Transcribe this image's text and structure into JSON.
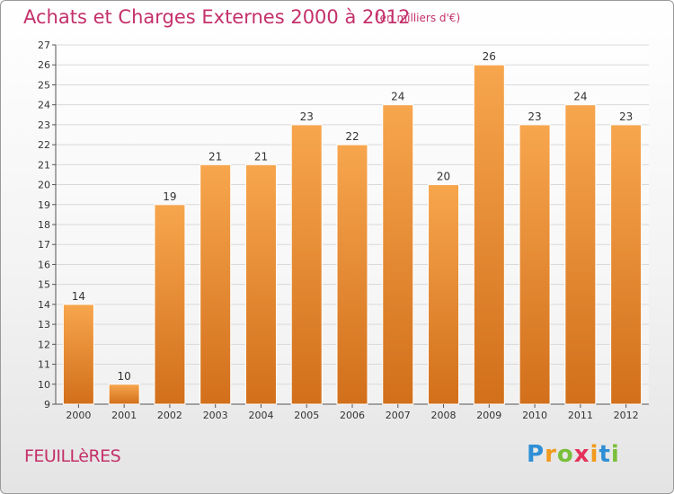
{
  "chart": {
    "title": "Achats et Charges Externes 2000 à 2012",
    "subtitle": "(en milliers d'€)"
  },
  "commune": "FEUILLèRES",
  "logo": {
    "letters": [
      "P",
      "r",
      "o",
      "x",
      "i",
      "t",
      "i"
    ],
    "colors": [
      "#2f8fd6",
      "#f29a1d",
      "#7abf3a",
      "#e5325a",
      "#f29a1d",
      "#2f8fd6",
      "#7abf3a"
    ]
  },
  "colors": {
    "accent": "#c4306a",
    "bar_light": "#f7a64e",
    "bar_dark": "#d26f1b"
  },
  "chart_data": {
    "type": "bar",
    "title": "Achats et Charges Externes 2000 à 2012",
    "subtitle": "(en milliers d'€)",
    "categories": [
      "2000",
      "2001",
      "2002",
      "2003",
      "2004",
      "2005",
      "2006",
      "2007",
      "2008",
      "2009",
      "2010",
      "2011",
      "2012"
    ],
    "values": [
      14,
      10,
      19,
      21,
      21,
      23,
      22,
      24,
      20,
      26,
      23,
      24,
      23
    ],
    "ylim": [
      9,
      27
    ],
    "yticks": [
      9,
      10,
      11,
      12,
      13,
      14,
      15,
      16,
      17,
      18,
      19,
      20,
      21,
      22,
      23,
      24,
      25,
      26,
      27
    ],
    "xlabel": "",
    "ylabel": "",
    "grid": true
  }
}
